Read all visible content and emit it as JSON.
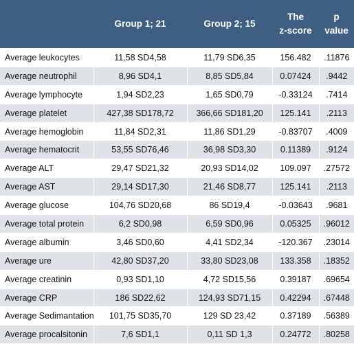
{
  "table": {
    "headers": [
      {
        "lines": [
          ""
        ]
      },
      {
        "lines": [
          "Group 1; 21"
        ]
      },
      {
        "lines": [
          "Group 2; 15"
        ]
      },
      {
        "lines": [
          "The",
          "z-score"
        ]
      },
      {
        "lines": [
          "p",
          "value"
        ]
      }
    ],
    "rows": [
      [
        "Average leukocytes",
        "11,58 SD4,58",
        "11,79 SD6,35",
        "156.482",
        ".11876"
      ],
      [
        "Average neutrophil",
        "8,96 SD4,1",
        "8,85 SD5,84",
        "0.07424",
        ".9442"
      ],
      [
        "Average lymphocyte",
        "1,94 SD2,23",
        "1,65 SD0,79",
        "-0.33124",
        ".7414"
      ],
      [
        "Average platelet",
        "427,38 SD178,72",
        "366,66 SD181,20",
        "125.141",
        ".2113"
      ],
      [
        "Average hemoglobin",
        "11,84 SD2,31",
        "11,86 SD1,29",
        "-0.83707",
        ".4009"
      ],
      [
        "Average hematocrit",
        "53,55 SD76,46",
        "36,98 SD3,30",
        "0.11389",
        ".9124"
      ],
      [
        "Average ALT",
        "29,47 SD21,32",
        "20,93 SD14,02",
        "109.097",
        ".27572"
      ],
      [
        "Average AST",
        "29,14 SD17,30",
        "21,46 SD8,77",
        "125.141",
        ".2113"
      ],
      [
        "Average glucose",
        "104,76 SD20,68",
        "86 SD19,4",
        "-0.03643",
        ".9681"
      ],
      [
        "Average total protein",
        "6,2 SD0,98",
        "6,59 SD0,96",
        "0.05325",
        ".96012"
      ],
      [
        "Average albumin",
        "3,46 SD0,60",
        "4,41 SD2,34",
        "-120.367",
        ".23014"
      ],
      [
        "Average ure",
        "42,80 SD37,20",
        "33,80 SD23,08",
        "133.358",
        ".18352"
      ],
      [
        "Average creatinin",
        "0,93 SD1,10",
        "4,72 SD15,56",
        "0.39187",
        ".69654"
      ],
      [
        "Average CRP",
        "186 SD22,62",
        "124,93 SD71,15",
        "0.42294",
        ".67448"
      ],
      [
        "Average Sedimantation",
        "101,75 SD35,70",
        "129 SD 23,42",
        "0.37189",
        ".56389"
      ],
      [
        "Average procalsitonin",
        "7,6 SD1,1",
        "0,11 SD 1,3",
        "0.24772",
        ".80258"
      ]
    ]
  },
  "colors": {
    "header_bg": "#3e5f82",
    "header_text": "#ffffff",
    "row_alt": "#dfe3e8"
  }
}
